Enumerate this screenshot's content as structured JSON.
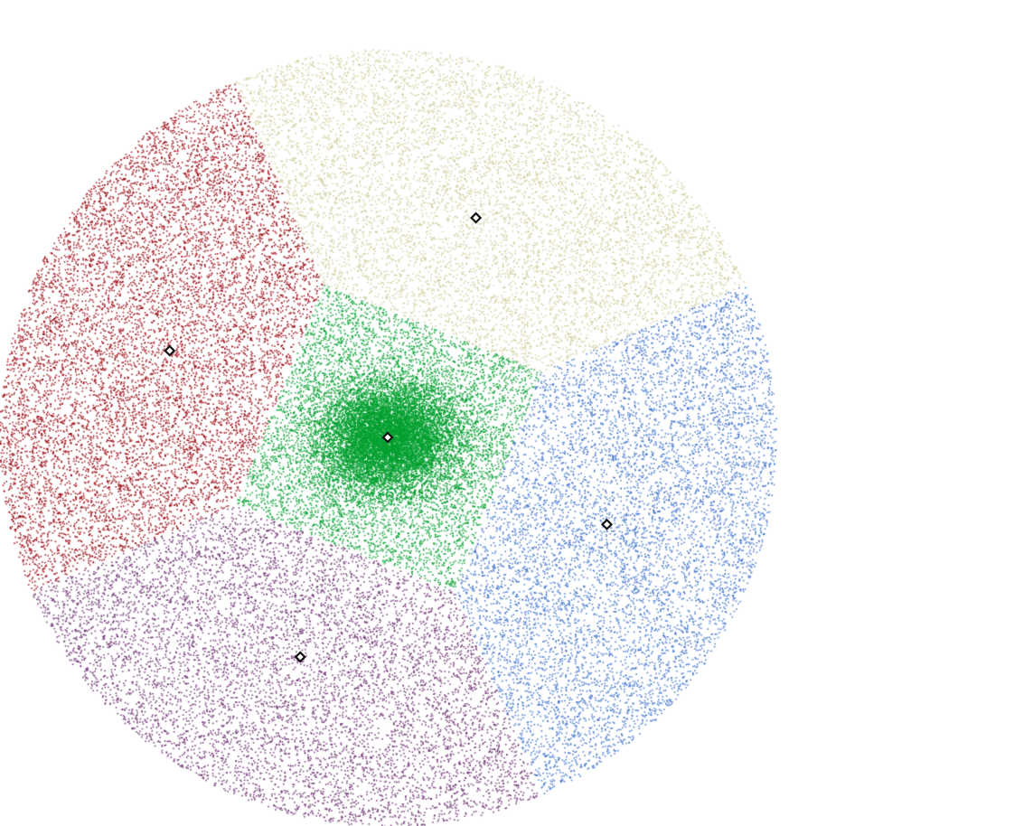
{
  "chart_data": {
    "type": "scatter",
    "title": "",
    "xlabel": "",
    "ylabel": "",
    "xlim": [
      -1,
      1
    ],
    "ylim": [
      -1,
      1
    ],
    "grid": false,
    "legend": "none",
    "domain_shape": "disk",
    "series": [
      {
        "color": "#99000d",
        "centroid": {
          "x": -0.561,
          "y": 0.223
        },
        "density": 0.48
      },
      {
        "color": "#cfcc9a",
        "centroid": {
          "x": 0.227,
          "y": 0.565
        },
        "density": 0.38
      },
      {
        "color": "#3b70cc",
        "centroid": {
          "x": 0.564,
          "y": -0.224
        },
        "density": 0.38
      },
      {
        "color": "#6a2d6e",
        "centroid": {
          "x": -0.225,
          "y": -0.565
        },
        "density": 0.38
      },
      {
        "color": "#00a030",
        "centroid": {
          "x": 0,
          "y": 0
        },
        "density": 1.0,
        "concentrated": true
      }
    ]
  }
}
